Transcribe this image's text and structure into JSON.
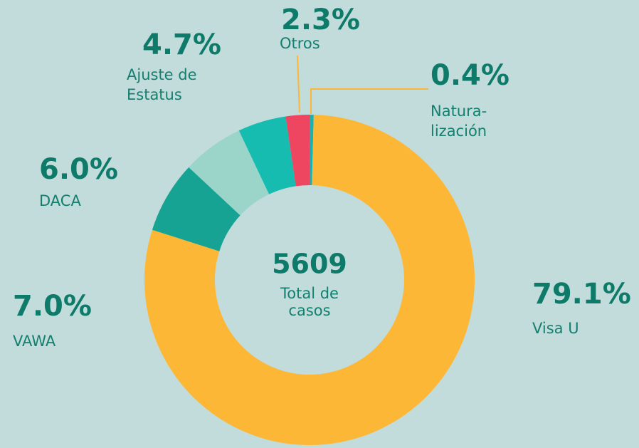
{
  "chart_data": {
    "type": "donut",
    "center": {
      "value": 5609,
      "label": [
        "Total de",
        "casos"
      ]
    },
    "series": [
      {
        "name": [
          "Natura-",
          "lización"
        ],
        "value": 0.4,
        "value_label": "0.4%",
        "color": "#17b3b0"
      },
      {
        "name": [
          "Visa U"
        ],
        "value": 79.1,
        "value_label": "79.1%",
        "color": "#fdb737"
      },
      {
        "name": [
          "VAWA"
        ],
        "value": 7.0,
        "value_label": "7.0%",
        "color": "#16a394"
      },
      {
        "name": [
          "DACA"
        ],
        "value": 6.0,
        "value_label": "6.0%",
        "color": "#9bd5c9"
      },
      {
        "name": [
          "Ajuste de",
          "Estatus"
        ],
        "value": 4.7,
        "value_label": "4.7%",
        "color": "#17bcb0"
      },
      {
        "name": [
          "Otros"
        ],
        "value": 2.3,
        "value_label": "2.3%",
        "color": "#ee4660"
      }
    ]
  }
}
